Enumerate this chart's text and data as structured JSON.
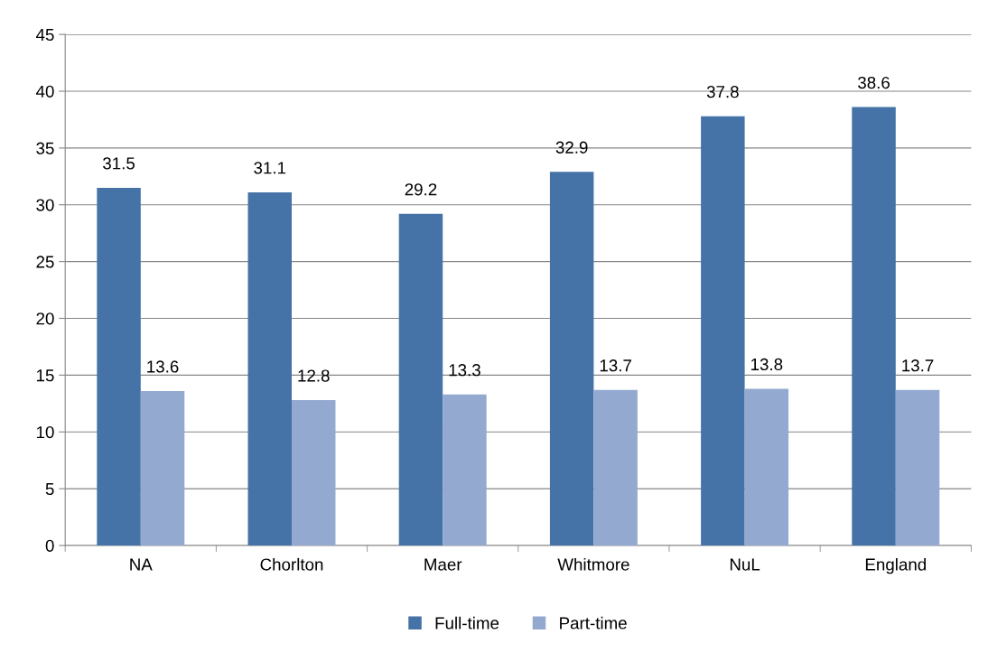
{
  "chart_data": {
    "type": "bar",
    "categories": [
      "NA",
      "Chorlton",
      "Maer",
      "Whitmore",
      "NuL",
      "England"
    ],
    "series": [
      {
        "name": "Full-time",
        "color": "#4573a7",
        "values": [
          31.5,
          31.1,
          29.2,
          32.9,
          37.8,
          38.6
        ]
      },
      {
        "name": "Part-time",
        "color": "#94a9d0",
        "values": [
          13.6,
          12.8,
          13.3,
          13.7,
          13.8,
          13.7
        ]
      }
    ],
    "ylim": [
      0,
      45
    ],
    "yticks": [
      0,
      5,
      10,
      15,
      20,
      25,
      30,
      35,
      40,
      45
    ],
    "grid": "y",
    "legend": "bottom",
    "data_labels": true
  }
}
